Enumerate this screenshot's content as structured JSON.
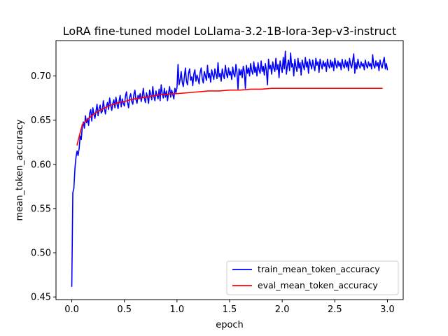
{
  "chart_data": {
    "type": "line",
    "title": "LoRA fine-tuned model LoLlama-3.2-1B-lora-3ep-v3-instruct",
    "xlabel": "epoch",
    "ylabel": "mean_token_accuracy",
    "xlim": [
      -0.15,
      3.15
    ],
    "ylim": [
      0.447,
      0.74
    ],
    "xticks": [
      0.0,
      0.5,
      1.0,
      1.5,
      2.0,
      2.5,
      3.0
    ],
    "xtick_labels": [
      "0.0",
      "0.5",
      "1.0",
      "1.5",
      "2.0",
      "2.5",
      "3.0"
    ],
    "yticks": [
      0.45,
      0.5,
      0.55,
      0.6,
      0.65,
      0.7
    ],
    "ytick_labels": [
      "0.45",
      "0.50",
      "0.55",
      "0.60",
      "0.65",
      "0.70"
    ],
    "grid": false,
    "legend_position": "lower-right",
    "series": [
      {
        "name": "train_mean_token_accuracy",
        "color": "#0000ff",
        "x": [
          0.0,
          0.01,
          0.02,
          0.03,
          0.04,
          0.05,
          0.06,
          0.07,
          0.08,
          0.09,
          0.1,
          0.11,
          0.12,
          0.13,
          0.14,
          0.15,
          0.16,
          0.17,
          0.18,
          0.19,
          0.2,
          0.21,
          0.22,
          0.23,
          0.24,
          0.25,
          0.26,
          0.27,
          0.28,
          0.29,
          0.3,
          0.31,
          0.32,
          0.33,
          0.34,
          0.35,
          0.36,
          0.37,
          0.38,
          0.39,
          0.4,
          0.41,
          0.42,
          0.43,
          0.44,
          0.45,
          0.46,
          0.47,
          0.48,
          0.49,
          0.5,
          0.51,
          0.52,
          0.53,
          0.54,
          0.55,
          0.56,
          0.57,
          0.58,
          0.59,
          0.6,
          0.61,
          0.62,
          0.63,
          0.64,
          0.65,
          0.66,
          0.67,
          0.68,
          0.69,
          0.7,
          0.71,
          0.72,
          0.73,
          0.74,
          0.75,
          0.76,
          0.77,
          0.78,
          0.79,
          0.8,
          0.81,
          0.82,
          0.83,
          0.84,
          0.85,
          0.86,
          0.87,
          0.88,
          0.89,
          0.9,
          0.91,
          0.92,
          0.93,
          0.94,
          0.95,
          0.96,
          0.97,
          0.98,
          0.99,
          1.0,
          1.01,
          1.02,
          1.03,
          1.04,
          1.05,
          1.06,
          1.07,
          1.08,
          1.09,
          1.1,
          1.11,
          1.12,
          1.13,
          1.14,
          1.15,
          1.16,
          1.17,
          1.18,
          1.19,
          1.2,
          1.21,
          1.22,
          1.23,
          1.24,
          1.25,
          1.26,
          1.27,
          1.28,
          1.29,
          1.3,
          1.31,
          1.32,
          1.33,
          1.34,
          1.35,
          1.36,
          1.37,
          1.38,
          1.39,
          1.4,
          1.41,
          1.42,
          1.43,
          1.44,
          1.45,
          1.46,
          1.47,
          1.48,
          1.49,
          1.5,
          1.51,
          1.52,
          1.53,
          1.54,
          1.55,
          1.56,
          1.57,
          1.58,
          1.59,
          1.6,
          1.61,
          1.62,
          1.63,
          1.64,
          1.65,
          1.66,
          1.67,
          1.68,
          1.69,
          1.7,
          1.71,
          1.72,
          1.73,
          1.74,
          1.75,
          1.76,
          1.77,
          1.78,
          1.79,
          1.8,
          1.81,
          1.82,
          1.83,
          1.84,
          1.85,
          1.86,
          1.87,
          1.88,
          1.89,
          1.9,
          1.91,
          1.92,
          1.93,
          1.94,
          1.95,
          1.96,
          1.97,
          1.98,
          1.99,
          2.0,
          2.01,
          2.02,
          2.03,
          2.04,
          2.05,
          2.06,
          2.07,
          2.08,
          2.09,
          2.1,
          2.11,
          2.12,
          2.13,
          2.14,
          2.15,
          2.16,
          2.17,
          2.18,
          2.19,
          2.2,
          2.21,
          2.22,
          2.23,
          2.24,
          2.25,
          2.26,
          2.27,
          2.28,
          2.29,
          2.3,
          2.31,
          2.32,
          2.33,
          2.34,
          2.35,
          2.36,
          2.37,
          2.38,
          2.39,
          2.4,
          2.41,
          2.42,
          2.43,
          2.44,
          2.45,
          2.46,
          2.47,
          2.48,
          2.49,
          2.5,
          2.51,
          2.52,
          2.53,
          2.54,
          2.55,
          2.56,
          2.57,
          2.58,
          2.59,
          2.6,
          2.61,
          2.62,
          2.63,
          2.64,
          2.65,
          2.66,
          2.67,
          2.68,
          2.69,
          2.7,
          2.71,
          2.72,
          2.73,
          2.74,
          2.75,
          2.76,
          2.77,
          2.78,
          2.79,
          2.8,
          2.81,
          2.82,
          2.83,
          2.84,
          2.85,
          2.86,
          2.87,
          2.88,
          2.89,
          2.9,
          2.91,
          2.92,
          2.93,
          2.94,
          2.95,
          2.96,
          2.97,
          2.98,
          2.99,
          3.0
        ],
        "y": [
          0.462,
          0.568,
          0.573,
          0.595,
          0.608,
          0.615,
          0.61,
          0.618,
          0.632,
          0.628,
          0.642,
          0.648,
          0.641,
          0.655,
          0.647,
          0.652,
          0.644,
          0.658,
          0.662,
          0.649,
          0.664,
          0.657,
          0.652,
          0.66,
          0.668,
          0.655,
          0.663,
          0.667,
          0.658,
          0.66,
          0.672,
          0.663,
          0.657,
          0.666,
          0.67,
          0.662,
          0.675,
          0.667,
          0.661,
          0.669,
          0.673,
          0.664,
          0.676,
          0.668,
          0.663,
          0.672,
          0.678,
          0.665,
          0.674,
          0.669,
          0.666,
          0.677,
          0.682,
          0.67,
          0.664,
          0.676,
          0.68,
          0.671,
          0.668,
          0.679,
          0.684,
          0.673,
          0.669,
          0.678,
          0.674,
          0.68,
          0.671,
          0.677,
          0.686,
          0.675,
          0.67,
          0.681,
          0.676,
          0.669,
          0.684,
          0.679,
          0.673,
          0.688,
          0.677,
          0.672,
          0.683,
          0.678,
          0.674,
          0.685,
          0.672,
          0.69,
          0.68,
          0.675,
          0.686,
          0.676,
          0.683,
          0.672,
          0.681,
          0.688,
          0.676,
          0.684,
          0.679,
          0.674,
          0.686,
          0.681,
          0.687,
          0.713,
          0.69,
          0.696,
          0.705,
          0.693,
          0.688,
          0.699,
          0.709,
          0.694,
          0.69,
          0.703,
          0.708,
          0.695,
          0.699,
          0.689,
          0.702,
          0.707,
          0.694,
          0.701,
          0.697,
          0.691,
          0.704,
          0.709,
          0.697,
          0.692,
          0.705,
          0.7,
          0.695,
          0.712,
          0.698,
          0.703,
          0.693,
          0.707,
          0.701,
          0.696,
          0.708,
          0.702,
          0.697,
          0.715,
          0.699,
          0.703,
          0.694,
          0.708,
          0.701,
          0.697,
          0.712,
          0.703,
          0.698,
          0.709,
          0.701,
          0.705,
          0.696,
          0.71,
          0.702,
          0.699,
          0.713,
          0.704,
          0.685,
          0.708,
          0.701,
          0.707,
          0.698,
          0.711,
          0.705,
          0.686,
          0.712,
          0.703,
          0.709,
          0.7,
          0.714,
          0.706,
          0.702,
          0.716,
          0.704,
          0.71,
          0.7,
          0.715,
          0.707,
          0.703,
          0.717,
          0.705,
          0.711,
          0.701,
          0.714,
          0.706,
          0.69,
          0.719,
          0.708,
          0.712,
          0.702,
          0.716,
          0.709,
          0.705,
          0.72,
          0.707,
          0.713,
          0.698,
          0.717,
          0.71,
          0.704,
          0.721,
          0.708,
          0.728,
          0.702,
          0.712,
          0.718,
          0.706,
          0.726,
          0.71,
          0.714,
          0.7,
          0.719,
          0.711,
          0.705,
          0.72,
          0.709,
          0.715,
          0.701,
          0.718,
          0.712,
          0.707,
          0.721,
          0.71,
          0.716,
          0.703,
          0.719,
          0.713,
          0.708,
          0.718,
          0.711,
          0.706,
          0.72,
          0.712,
          0.716,
          0.704,
          0.719,
          0.713,
          0.708,
          0.717,
          0.711,
          0.715,
          0.705,
          0.719,
          0.712,
          0.709,
          0.718,
          0.71,
          0.716,
          0.706,
          0.72,
          0.713,
          0.709,
          0.717,
          0.711,
          0.715,
          0.707,
          0.719,
          0.712,
          0.709,
          0.718,
          0.71,
          0.716,
          0.706,
          0.72,
          0.713,
          0.709,
          0.717,
          0.725,
          0.703,
          0.715,
          0.708,
          0.719,
          0.712,
          0.709,
          0.716,
          0.711,
          0.714,
          0.707,
          0.718,
          0.712,
          0.709,
          0.716,
          0.711,
          0.714,
          0.708,
          0.724,
          0.712,
          0.709,
          0.717,
          0.711,
          0.715,
          0.706,
          0.718,
          0.712,
          0.709,
          0.716,
          0.721,
          0.708,
          0.714,
          0.707
        ]
      },
      {
        "name": "eval_mean_token_accuracy",
        "color": "#ff0000",
        "x": [
          0.05,
          0.1,
          0.15,
          0.2,
          0.25,
          0.3,
          0.35,
          0.4,
          0.45,
          0.5,
          0.55,
          0.6,
          0.65,
          0.7,
          0.75,
          0.8,
          0.85,
          0.9,
          0.95,
          1.0,
          1.1,
          1.2,
          1.3,
          1.4,
          1.5,
          1.6,
          1.7,
          1.8,
          1.9,
          2.0,
          2.1,
          2.2,
          2.3,
          2.4,
          2.5,
          2.6,
          2.7,
          2.8,
          2.9,
          2.95
        ],
        "y": [
          0.622,
          0.645,
          0.651,
          0.656,
          0.66,
          0.663,
          0.666,
          0.668,
          0.67,
          0.671,
          0.673,
          0.674,
          0.675,
          0.676,
          0.677,
          0.678,
          0.679,
          0.679,
          0.68,
          0.68,
          0.681,
          0.682,
          0.683,
          0.683,
          0.684,
          0.684,
          0.685,
          0.685,
          0.686,
          0.686,
          0.686,
          0.686,
          0.686,
          0.686,
          0.686,
          0.686,
          0.686,
          0.686,
          0.686,
          0.686
        ]
      }
    ]
  }
}
